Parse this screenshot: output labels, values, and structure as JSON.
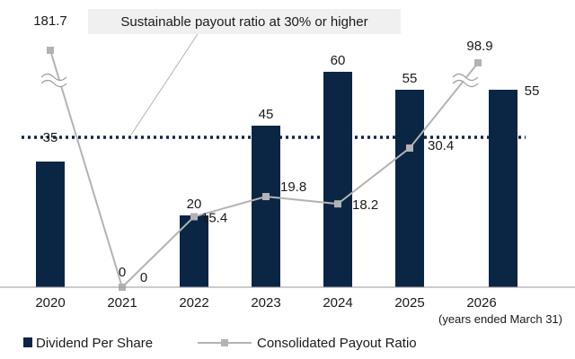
{
  "chart_data": {
    "type": "bar",
    "categories": [
      "2020",
      "2021",
      "2022",
      "2023",
      "2024",
      "2025",
      "2026"
    ],
    "series": [
      {
        "name": "Dividend Per Share",
        "type": "bar",
        "values": [
          35,
          0,
          20,
          45,
          60,
          55,
          55
        ],
        "labels": [
          "35",
          "0",
          "20",
          "45",
          "60",
          "55",
          "55"
        ],
        "color": "#0b2545"
      },
      {
        "name": "Consolidated Payout Ratio",
        "type": "line",
        "values": [
          181.7,
          0,
          15.4,
          19.8,
          18.2,
          30.4,
          98.9
        ],
        "labels": [
          "181.7",
          "0",
          "15.4",
          "19.8",
          "18.2",
          "30.4",
          "98.9"
        ],
        "color": "#b3b3b3"
      }
    ],
    "reference_line": {
      "value": 35,
      "label": "Sustainable payout ratio at 30% or higher",
      "style": "dotted"
    },
    "x_note": "(years ended March 31)",
    "axis_breaks": [
      "2020",
      "2026"
    ],
    "legend_position": "bottom-left"
  }
}
